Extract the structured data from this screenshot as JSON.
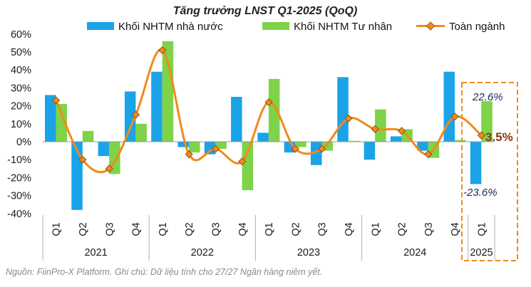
{
  "chart_data": {
    "type": "bar",
    "title": "Tăng trưởng LNST Q1-2025 (QoQ)",
    "categories": [
      "Q1",
      "Q2",
      "Q3",
      "Q4",
      "Q1",
      "Q2",
      "Q3",
      "Q4",
      "Q1",
      "Q2",
      "Q3",
      "Q4",
      "Q1",
      "Q2",
      "Q3",
      "Q4",
      "Q1"
    ],
    "years": [
      {
        "label": "2021",
        "count": 4
      },
      {
        "label": "2022",
        "count": 4
      },
      {
        "label": "2023",
        "count": 4
      },
      {
        "label": "2024",
        "count": 4
      },
      {
        "label": "2025",
        "count": 1
      }
    ],
    "series": [
      {
        "name": "Khối NHTM nhà nước",
        "kind": "bar",
        "color": "#1aa3e8",
        "values": [
          26,
          -38,
          -8,
          28,
          39,
          -3,
          -7,
          25,
          5,
          -6,
          -13,
          36,
          -10,
          3,
          -5,
          39,
          -23.6
        ]
      },
      {
        "name": "Khối NHTM Tư nhân",
        "kind": "bar",
        "color": "#7ed348",
        "values": [
          21,
          6,
          -18,
          10,
          56,
          -6,
          -4,
          -27,
          35,
          -3,
          -5,
          0.5,
          18,
          7,
          -9,
          1,
          22.6
        ]
      },
      {
        "name": "Toàn ngành",
        "kind": "line",
        "color": "#f08a1c",
        "values": [
          23,
          -10,
          -15,
          15,
          51,
          -7,
          -4,
          -11,
          22,
          -4,
          -4,
          13,
          7,
          6,
          -7,
          14,
          3.5
        ]
      }
    ],
    "ylim": [
      -40,
      60
    ],
    "yticks": [
      -40,
      -30,
      -20,
      -10,
      0,
      10,
      20,
      30,
      40,
      50,
      60
    ],
    "ytick_labels": [
      "-40%",
      "-30%",
      "-20%",
      "-10%",
      "0%",
      "10%",
      "20%",
      "30%",
      "40%",
      "50%",
      "60%"
    ],
    "annotations": {
      "private": "22.6%",
      "state": "-23.6%",
      "total": "3.5%"
    },
    "legend": "top",
    "source": "Nguồn: FiinPro-X Platform. Ghi chú: Dữ liệu tính cho 27/27 Ngân hàng niêm yết."
  }
}
